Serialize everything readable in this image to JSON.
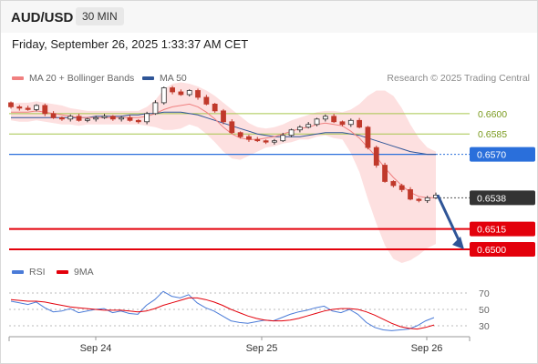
{
  "header": {
    "symbol": "AUD/USD",
    "timeframe": "30 MIN",
    "datetime": "Friday, September 26, 2025 1:33:37 AM CET"
  },
  "legend": {
    "ma20": "MA 20 + Bollinger Bands",
    "ma50": "MA 50",
    "credit": "Research © 2025 Trading Central"
  },
  "rsi_legend": {
    "rsi": "RSI",
    "ma9": "9MA"
  },
  "colors": {
    "ma20": "#f08080",
    "bollinger_fill": "#fde0e0",
    "ma50": "#2f5597",
    "resistance": "#a6c64d",
    "pivot": "#2a6fdb",
    "support": "#e3000b",
    "last_price": "#333333",
    "arrow": "#2f5597",
    "rsi": "#4a7bd8",
    "rsi_ma": "#e3000b",
    "candle_up": "#2e2e2e",
    "candle_down": "#c0392b"
  },
  "chart_data": [
    {
      "type": "line",
      "title": "AUD/USD",
      "timeframe": "30 MIN",
      "x_labels": [
        "Sep 24",
        "Sep 25",
        "Sep 26"
      ],
      "ylim": [
        0.6494,
        0.662
      ],
      "grid": false,
      "legend_position": "top-left",
      "levels": [
        {
          "name": "resistance",
          "value": 0.66,
          "label": "0.6600"
        },
        {
          "name": "resistance",
          "value": 0.6585,
          "label": "0.6585"
        },
        {
          "name": "pivot",
          "value": 0.657,
          "label": "0.6570"
        },
        {
          "name": "last",
          "value": 0.6538,
          "label": "0.6538"
        },
        {
          "name": "support",
          "value": 0.6515,
          "label": "0.6515"
        },
        {
          "name": "support",
          "value": 0.65,
          "label": "0.6500"
        }
      ],
      "price_close": [
        0.6605,
        0.6604,
        0.6603,
        0.6606,
        0.66,
        0.6597,
        0.6596,
        0.6598,
        0.6595,
        0.6596,
        0.6597,
        0.6598,
        0.6596,
        0.6597,
        0.6595,
        0.6594,
        0.66,
        0.6608,
        0.6619,
        0.6616,
        0.6614,
        0.6617,
        0.6612,
        0.6607,
        0.6602,
        0.6594,
        0.6586,
        0.6583,
        0.6581,
        0.658,
        0.6579,
        0.658,
        0.6584,
        0.6588,
        0.659,
        0.6592,
        0.6596,
        0.6598,
        0.6594,
        0.6592,
        0.6595,
        0.659,
        0.6575,
        0.6562,
        0.655,
        0.6547,
        0.6544,
        0.6537,
        0.6536,
        0.6538,
        0.654
      ],
      "series": [
        {
          "name": "MA 20",
          "values": [
            0.6601,
            0.6601,
            0.6601,
            0.6602,
            0.6601,
            0.66,
            0.6599,
            0.6598,
            0.6597,
            0.6597,
            0.6597,
            0.6597,
            0.6597,
            0.6597,
            0.6597,
            0.6597,
            0.6598,
            0.66,
            0.6603,
            0.6605,
            0.6606,
            0.6607,
            0.6605,
            0.6601,
            0.6596,
            0.659,
            0.6585,
            0.6582,
            0.6581,
            0.6581,
            0.6582,
            0.6583,
            0.6585,
            0.6587,
            0.6589,
            0.659,
            0.6592,
            0.6593,
            0.6592,
            0.6591,
            0.6587,
            0.6582,
            0.6575,
            0.6568,
            0.656,
            0.6553,
            0.6547,
            0.6542,
            0.6539,
            0.6538,
            0.6538
          ]
        },
        {
          "name": "MA 50",
          "values": [
            0.6597,
            0.6597,
            0.6597,
            0.6597,
            0.6597,
            0.6597,
            0.6597,
            0.6597,
            0.6597,
            0.6597,
            0.6598,
            0.6598,
            0.6598,
            0.6598,
            0.6599,
            0.6599,
            0.66,
            0.66,
            0.6601,
            0.6601,
            0.6601,
            0.66,
            0.6599,
            0.6597,
            0.6595,
            0.6593,
            0.6591,
            0.6589,
            0.6587,
            0.6585,
            0.6584,
            0.6583,
            0.6583,
            0.6583,
            0.6583,
            0.6584,
            0.6585,
            0.6586,
            0.6586,
            0.6586,
            0.6585,
            0.6584,
            0.6582,
            0.658,
            0.6578,
            0.6576,
            0.6574,
            0.6572,
            0.6571,
            0.657,
            0.657
          ]
        },
        {
          "name": "Bollinger upper",
          "values": [
            0.6607,
            0.6608,
            0.6608,
            0.6609,
            0.6608,
            0.6607,
            0.6606,
            0.6604,
            0.6603,
            0.6602,
            0.6602,
            0.6602,
            0.6602,
            0.6602,
            0.6602,
            0.6602,
            0.6605,
            0.661,
            0.6618,
            0.6622,
            0.6623,
            0.6622,
            0.662,
            0.6617,
            0.6613,
            0.6608,
            0.6603,
            0.6598,
            0.6593,
            0.659,
            0.6589,
            0.659,
            0.6592,
            0.6595,
            0.6597,
            0.6599,
            0.6601,
            0.6602,
            0.6602,
            0.6601,
            0.6603,
            0.6607,
            0.6613,
            0.6617,
            0.6617,
            0.6613,
            0.6604,
            0.6592,
            0.6582,
            0.6575,
            0.6572
          ]
        },
        {
          "name": "Bollinger lower",
          "values": [
            0.6595,
            0.6594,
            0.6594,
            0.6595,
            0.6594,
            0.6593,
            0.6592,
            0.6592,
            0.6591,
            0.6592,
            0.6592,
            0.6592,
            0.6592,
            0.6592,
            0.6592,
            0.6592,
            0.6591,
            0.659,
            0.6588,
            0.6588,
            0.6589,
            0.6592,
            0.659,
            0.6585,
            0.6579,
            0.6572,
            0.6567,
            0.6566,
            0.6569,
            0.6572,
            0.6575,
            0.6576,
            0.6578,
            0.6579,
            0.6581,
            0.6581,
            0.6583,
            0.6584,
            0.6582,
            0.6581,
            0.6571,
            0.6557,
            0.6537,
            0.6519,
            0.6503,
            0.6493,
            0.649,
            0.6492,
            0.6496,
            0.6501,
            0.6504
          ]
        }
      ],
      "forecast_arrow": {
        "from": 0.654,
        "to": 0.65
      }
    },
    {
      "type": "line",
      "title": "RSI",
      "x_labels": [
        "Sep 24",
        "Sep 25",
        "Sep 26"
      ],
      "ylim": [
        20,
        80
      ],
      "y_ticks": [
        70,
        50,
        30
      ],
      "grid": true,
      "legend_position": "top-left",
      "series": [
        {
          "name": "RSI",
          "values": [
            60,
            58,
            56,
            59,
            52,
            47,
            48,
            51,
            46,
            48,
            50,
            51,
            46,
            48,
            45,
            44,
            55,
            62,
            72,
            66,
            64,
            68,
            58,
            52,
            48,
            42,
            36,
            34,
            33,
            35,
            37,
            36,
            40,
            44,
            47,
            49,
            52,
            54,
            48,
            46,
            50,
            44,
            34,
            28,
            25,
            24,
            25,
            26,
            30,
            36,
            40
          ]
        },
        {
          "name": "9MA",
          "values": [
            62,
            61,
            60,
            60,
            59,
            57,
            55,
            53,
            52,
            51,
            50,
            49,
            49,
            49,
            48,
            47,
            48,
            51,
            55,
            58,
            61,
            64,
            64,
            62,
            59,
            55,
            50,
            46,
            42,
            39,
            37,
            36,
            36,
            37,
            39,
            42,
            45,
            48,
            50,
            51,
            51,
            50,
            47,
            43,
            38,
            33,
            29,
            27,
            26,
            28,
            31
          ]
        }
      ]
    }
  ]
}
